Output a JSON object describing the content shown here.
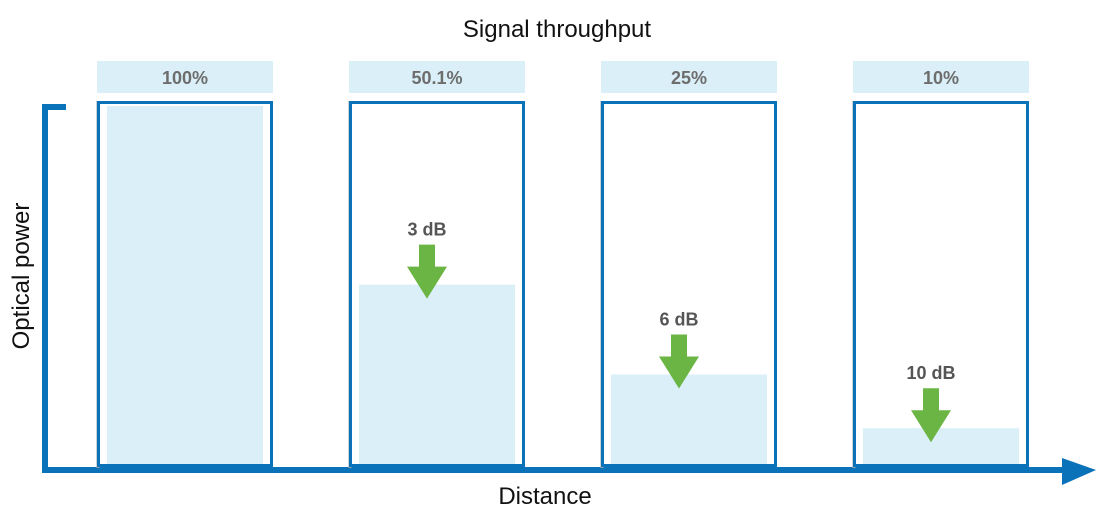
{
  "title": "Signal throughput",
  "xlabel": "Distance",
  "ylabel": "Optical power",
  "colors": {
    "axis": "#0a72b8",
    "fill": "#daeff7",
    "arrow": "#6ab543",
    "label": "#6d6d6d"
  },
  "chart_data": {
    "type": "bar",
    "categories": [
      "100%",
      "50.1%",
      "25%",
      "10%"
    ],
    "values": [
      100,
      50.1,
      25,
      10
    ],
    "losses": [
      "",
      "3 dB",
      "6 dB",
      "10 dB"
    ],
    "title": "Signal throughput",
    "xlabel": "Distance",
    "ylabel": "Optical power",
    "ylim": [
      0,
      100
    ]
  }
}
